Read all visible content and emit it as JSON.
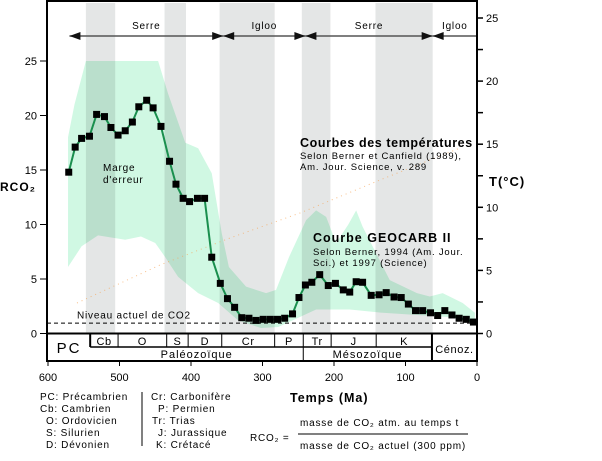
{
  "chart_data": {
    "type": "line",
    "xlabel": "Temps (Ma)",
    "ylabel": "RCO₂",
    "y2label": "T(°C)",
    "xlim": [
      600,
      0
    ],
    "ylim": [
      0,
      25
    ],
    "y2lim": [
      0,
      25
    ],
    "xticks": [
      "600",
      "500",
      "400",
      "300",
      "200",
      "100",
      "0"
    ],
    "yticks": [
      "0",
      "5",
      "10",
      "15",
      "20",
      "25"
    ],
    "y2ticks": [
      "0",
      "5",
      "10",
      "15",
      "20",
      "25"
    ],
    "grid": false,
    "colors": {
      "line": "#1a8f4e",
      "marker": "#000000",
      "band": "#c8f7de",
      "shade": "#e4e6e6",
      "dash": "#000000"
    },
    "series": [
      {
        "name": "Courbe GEOCARB II",
        "points": [
          [
            571,
            14.8
          ],
          [
            562,
            17.1
          ],
          [
            553,
            17.9
          ],
          [
            542,
            18.1
          ],
          [
            532,
            20.1
          ],
          [
            521,
            19.9
          ],
          [
            512,
            18.9
          ],
          [
            502,
            18.2
          ],
          [
            492,
            18.6
          ],
          [
            482,
            19.4
          ],
          [
            473,
            20.8
          ],
          [
            462,
            21.4
          ],
          [
            453,
            20.7
          ],
          [
            442,
            19.0
          ],
          [
            430,
            15.8
          ],
          [
            421,
            13.7
          ],
          [
            411,
            12.4
          ],
          [
            402,
            12.1
          ],
          [
            391,
            12.4
          ],
          [
            381,
            12.4
          ],
          [
            371,
            7.0
          ],
          [
            359,
            4.6
          ],
          [
            349,
            3.2
          ],
          [
            339,
            2.4
          ],
          [
            329,
            1.45
          ],
          [
            319,
            1.4
          ],
          [
            309,
            1.2
          ],
          [
            299,
            1.3
          ],
          [
            289,
            1.3
          ],
          [
            279,
            1.3
          ],
          [
            269,
            1.4
          ],
          [
            258,
            1.8
          ],
          [
            249,
            3.3
          ],
          [
            240,
            4.45
          ],
          [
            231,
            4.7
          ],
          [
            220,
            5.4
          ],
          [
            208,
            4.4
          ],
          [
            198,
            4.6
          ],
          [
            187,
            4.0
          ],
          [
            178,
            3.8
          ],
          [
            169,
            4.75
          ],
          [
            160,
            4.7
          ],
          [
            148,
            3.5
          ],
          [
            137,
            3.55
          ],
          [
            127,
            3.75
          ],
          [
            116,
            3.35
          ],
          [
            106,
            3.3
          ],
          [
            96,
            2.7
          ],
          [
            86,
            2.1
          ],
          [
            76,
            2.1
          ],
          [
            65,
            1.9
          ],
          [
            55,
            1.65
          ],
          [
            45,
            2.1
          ],
          [
            35,
            1.7
          ],
          [
            25,
            1.4
          ],
          [
            15,
            1.3
          ],
          [
            5,
            1.05
          ]
        ]
      }
    ],
    "error_band": {
      "label": "Marge d'erreur",
      "upper": [
        [
          572,
          18
        ],
        [
          563,
          21
        ],
        [
          547,
          25
        ],
        [
          535,
          25
        ],
        [
          446,
          25
        ],
        [
          432,
          22
        ],
        [
          408,
          17.5
        ],
        [
          390,
          17
        ],
        [
          371,
          14.7
        ],
        [
          357,
          9.2
        ],
        [
          347,
          6.1
        ],
        [
          323,
          4.3
        ],
        [
          295,
          3.7
        ],
        [
          281,
          4
        ],
        [
          263,
          7
        ],
        [
          239,
          10.4
        ],
        [
          225,
          11.3
        ],
        [
          211,
          10.7
        ],
        [
          197,
          8.3
        ],
        [
          180,
          10
        ],
        [
          169,
          11.3
        ],
        [
          160,
          9.8
        ],
        [
          122,
          4.9
        ],
        [
          84,
          3.7
        ],
        [
          66,
          3.4
        ],
        [
          48,
          3.7
        ],
        [
          20,
          2.8
        ],
        [
          3,
          1.9
        ]
      ],
      "lower": [
        [
          572,
          6.1
        ],
        [
          553,
          8
        ],
        [
          530,
          9
        ],
        [
          492,
          8.6
        ],
        [
          470,
          8.9
        ],
        [
          450,
          8.3
        ],
        [
          436,
          7
        ],
        [
          418,
          5.2
        ],
        [
          390,
          3.7
        ],
        [
          362,
          2.8
        ],
        [
          334,
          1.2
        ],
        [
          302,
          0.5
        ],
        [
          278,
          0.6
        ],
        [
          225,
          2.2
        ],
        [
          178,
          2.2
        ],
        [
          132,
          1.9
        ],
        [
          84,
          1.7
        ],
        [
          38,
          1.5
        ],
        [
          3,
          1.2
        ]
      ]
    },
    "reference_line": {
      "label": "Niveau actuel de CO2",
      "value": 1
    },
    "shaded_periods": [
      [
        547,
        506
      ],
      [
        437,
        407
      ],
      [
        360,
        283
      ],
      [
        245,
        205
      ],
      [
        142,
        62
      ]
    ],
    "climate_phases": [
      {
        "label": "Serre",
        "from": 570,
        "to": 355
      },
      {
        "label": "Igloo",
        "from": 355,
        "to": 240
      },
      {
        "label": "Serre",
        "from": 240,
        "to": 62
      },
      {
        "label": "Igloo",
        "from": 62,
        "to": -30
      }
    ],
    "annotations": {
      "temp_title": "Courbes des températures",
      "temp_ref1": "Selon Berner et Canfield (1989),",
      "temp_ref2": "Am. Jour. Science, v. 289",
      "geocarb_title": "Courbe GEOCARB II",
      "geocarb_ref1": "Selon Berner, 1994 (Am. Jour.",
      "geocarb_ref2": "Sci.) et 1997 (Science)",
      "band_label1": "Marge",
      "band_label2": "d'erreur"
    },
    "periods": [
      {
        "label": "PC",
        "from": 600,
        "to": 541
      },
      {
        "label": "Cb",
        "from": 541,
        "to": 502
      },
      {
        "label": "O",
        "from": 502,
        "to": 434
      },
      {
        "label": "S",
        "from": 434,
        "to": 404
      },
      {
        "label": "D",
        "from": 404,
        "to": 357
      },
      {
        "label": "Cr",
        "from": 357,
        "to": 283
      },
      {
        "label": "P",
        "from": 283,
        "to": 243
      },
      {
        "label": "Tr",
        "from": 243,
        "to": 204
      },
      {
        "label": "J",
        "from": 204,
        "to": 141
      },
      {
        "label": "K",
        "from": 141,
        "to": 63
      },
      {
        "label": "Cénoz.",
        "from": 63,
        "to": 0
      }
    ],
    "eras": [
      {
        "label": "Paléozoïque",
        "from": 541,
        "to": 243
      },
      {
        "label": "Mésozoïque",
        "from": 243,
        "to": 63
      }
    ]
  },
  "legend": {
    "left": [
      "PC: Précambrien",
      "Cb: Cambrien",
      "O: Ordovicien",
      "S: Silurien",
      "D: Dévonien"
    ],
    "right": [
      "Cr: Carbonifère",
      "P: Permien",
      "Tr: Trias",
      "J: Jurassique",
      "K: Crétacé"
    ]
  },
  "formula": {
    "lhs": "RCO₂ =",
    "numerator": "masse de CO₂ atm. au temps t",
    "denominator": "masse de CO₂ actuel (300 ppm)"
  }
}
